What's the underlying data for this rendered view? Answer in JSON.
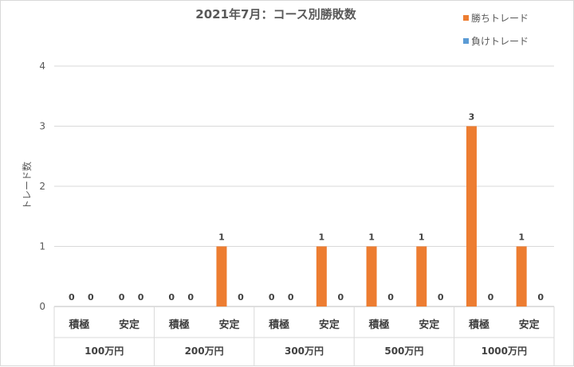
{
  "chart_data": {
    "type": "bar",
    "title": "2021年7月：コース別勝敗数",
    "ylabel": "トレード数",
    "ylim": [
      0,
      4
    ],
    "yticks": [
      0,
      1,
      2,
      3,
      4
    ],
    "grid": true,
    "legend_position": "top-right",
    "groups": [
      {
        "label": "100万円",
        "categories": [
          "積極",
          "安定"
        ]
      },
      {
        "label": "200万円",
        "categories": [
          "積極",
          "安定"
        ]
      },
      {
        "label": "300万円",
        "categories": [
          "積極",
          "安定"
        ]
      },
      {
        "label": "500万円",
        "categories": [
          "積極",
          "安定"
        ]
      },
      {
        "label": "1000万円",
        "categories": [
          "積極",
          "安定"
        ]
      }
    ],
    "series": [
      {
        "name": "勝ちトレード",
        "color": "#ed7d31",
        "values": [
          0,
          0,
          0,
          1,
          0,
          1,
          1,
          1,
          3,
          1
        ]
      },
      {
        "name": "負けトレード",
        "color": "#5b9bd5",
        "values": [
          0,
          0,
          0,
          0,
          0,
          0,
          0,
          0,
          0,
          0
        ]
      }
    ]
  }
}
